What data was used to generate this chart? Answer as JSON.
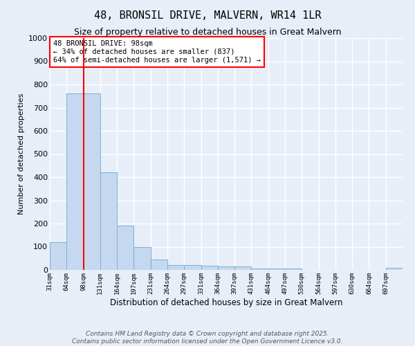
{
  "title": "48, BRONSIL DRIVE, MALVERN, WR14 1LR",
  "subtitle": "Size of property relative to detached houses in Great Malvern",
  "xlabel": "Distribution of detached houses by size in Great Malvern",
  "ylabel": "Number of detached properties",
  "bar_color": "#c5d8f0",
  "bar_edge_color": "#7aafd4",
  "vline_color": "red",
  "vline_bin_index": 2,
  "categories": [
    "31sqm",
    "64sqm",
    "98sqm",
    "131sqm",
    "164sqm",
    "197sqm",
    "231sqm",
    "264sqm",
    "297sqm",
    "331sqm",
    "364sqm",
    "397sqm",
    "431sqm",
    "464sqm",
    "497sqm",
    "530sqm",
    "564sqm",
    "597sqm",
    "630sqm",
    "664sqm",
    "697sqm"
  ],
  "values": [
    120,
    760,
    760,
    420,
    190,
    100,
    45,
    22,
    22,
    18,
    15,
    15,
    5,
    5,
    5,
    0,
    0,
    0,
    0,
    0,
    8
  ],
  "ylim": [
    0,
    1000
  ],
  "yticks": [
    0,
    100,
    200,
    300,
    400,
    500,
    600,
    700,
    800,
    900,
    1000
  ],
  "annotation_text": "48 BRONSIL DRIVE: 98sqm\n← 34% of detached houses are smaller (837)\n64% of semi-detached houses are larger (1,571) →",
  "annotation_box_color": "white",
  "annotation_box_edge_color": "red",
  "footer_line1": "Contains HM Land Registry data © Crown copyright and database right 2025.",
  "footer_line2": "Contains public sector information licensed under the Open Government Licence v3.0.",
  "background_color": "#e8eef8",
  "grid_color": "white",
  "title_fontsize": 11,
  "subtitle_fontsize": 9,
  "annotation_fontsize": 7.5,
  "footer_fontsize": 6.5
}
